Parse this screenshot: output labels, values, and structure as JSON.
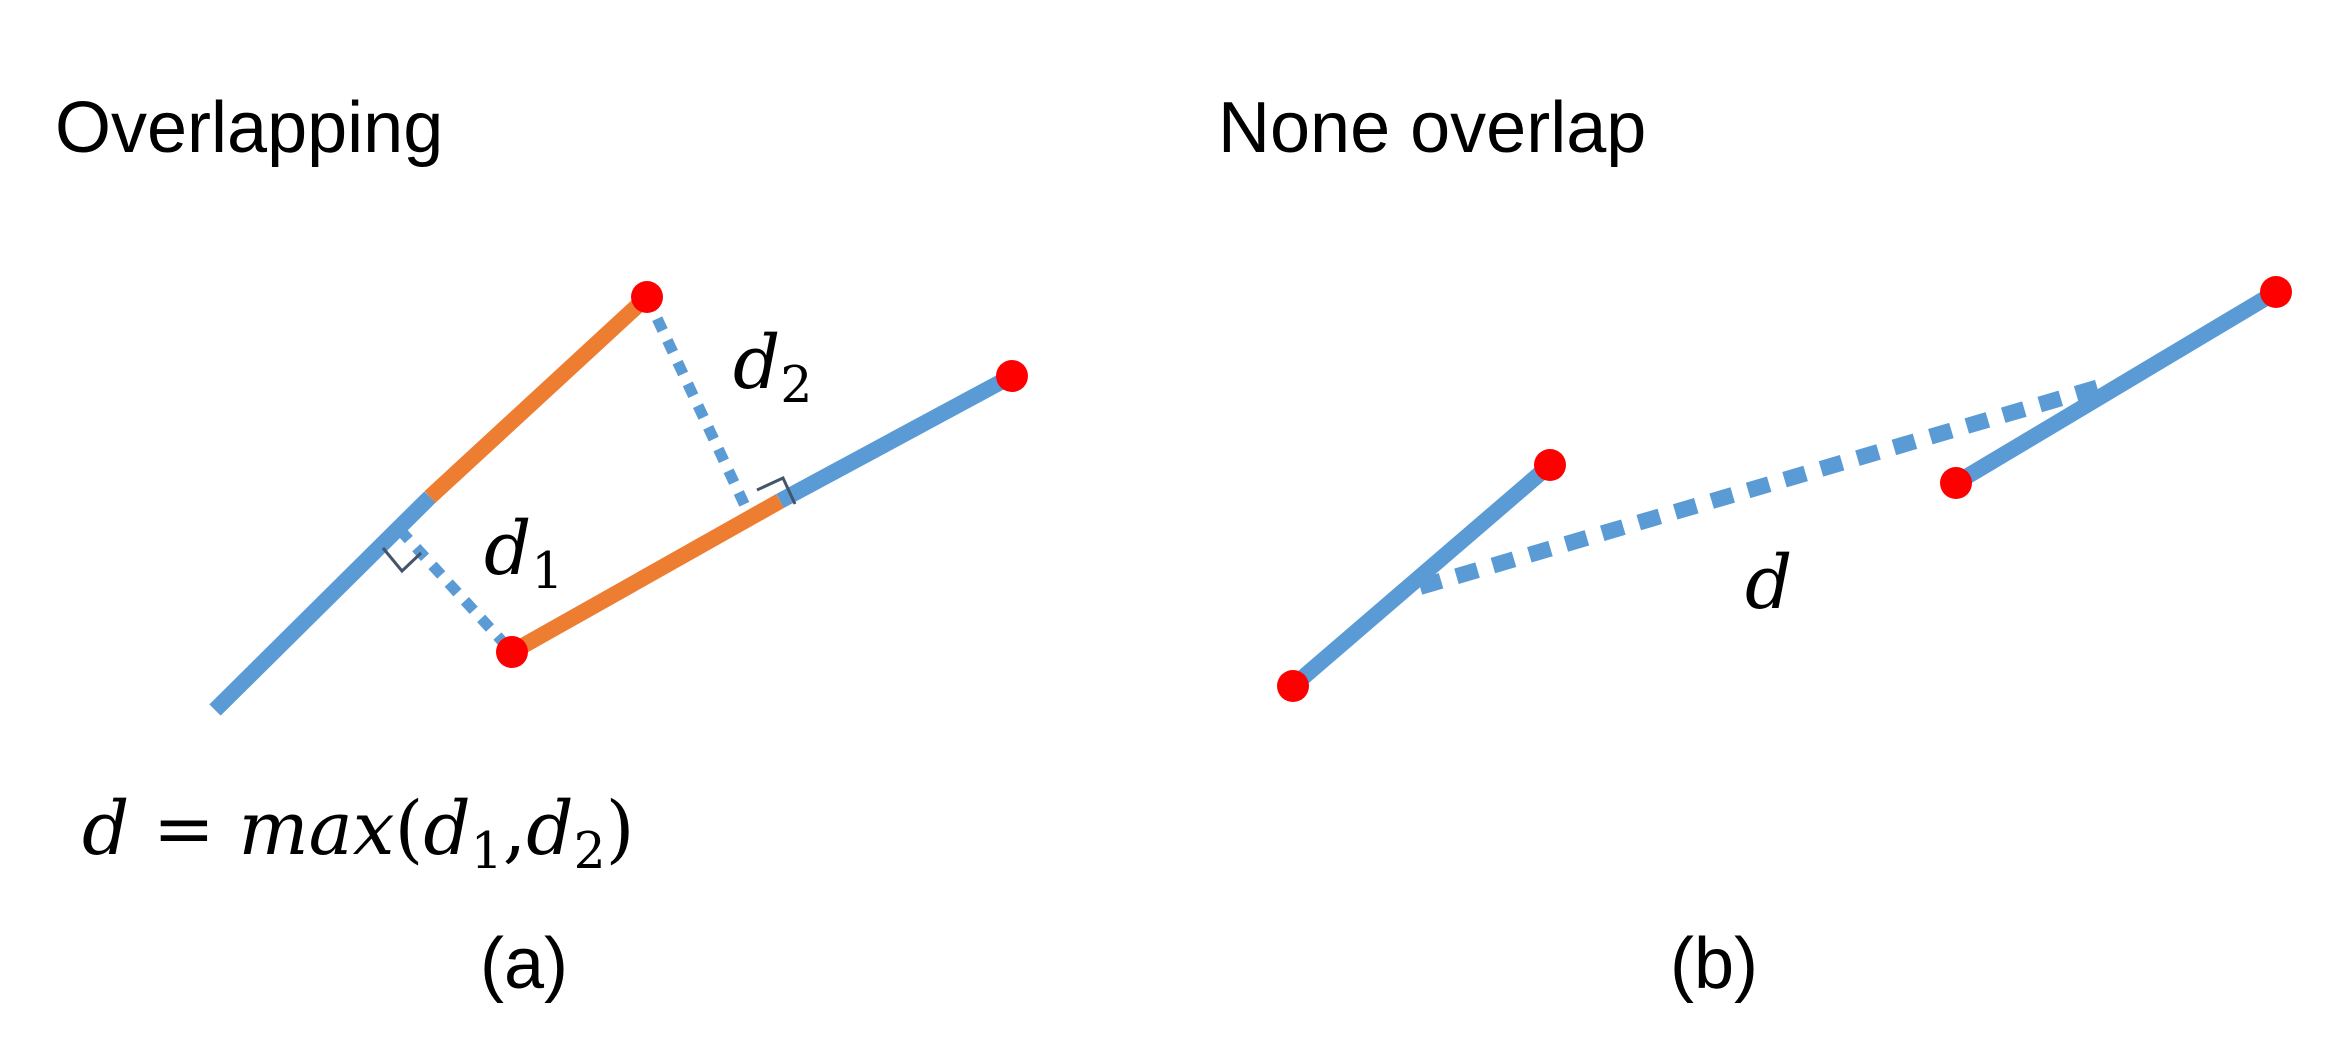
{
  "panel_a": {
    "heading": "Overlapping",
    "caption": "(a)",
    "label_d1": {
      "base": "d",
      "sub": "1"
    },
    "label_d2": {
      "base": "d",
      "sub": "2"
    },
    "formula": {
      "lhs": "d",
      "eq": "=",
      "fn": "max",
      "open": "(",
      "arg1_base": "d",
      "arg1_sub": "1",
      "comma": ",",
      "arg2_base": "d",
      "arg2_sub": "2",
      "close": ")"
    }
  },
  "panel_b": {
    "heading": "None overlap",
    "caption": "(b)",
    "label_d": "d"
  },
  "colors": {
    "segment": "#5b9bd5",
    "overlap": "#ed7d31",
    "endpoint": "#ff0000",
    "right_angle": "#44546a",
    "text": "#000000"
  }
}
